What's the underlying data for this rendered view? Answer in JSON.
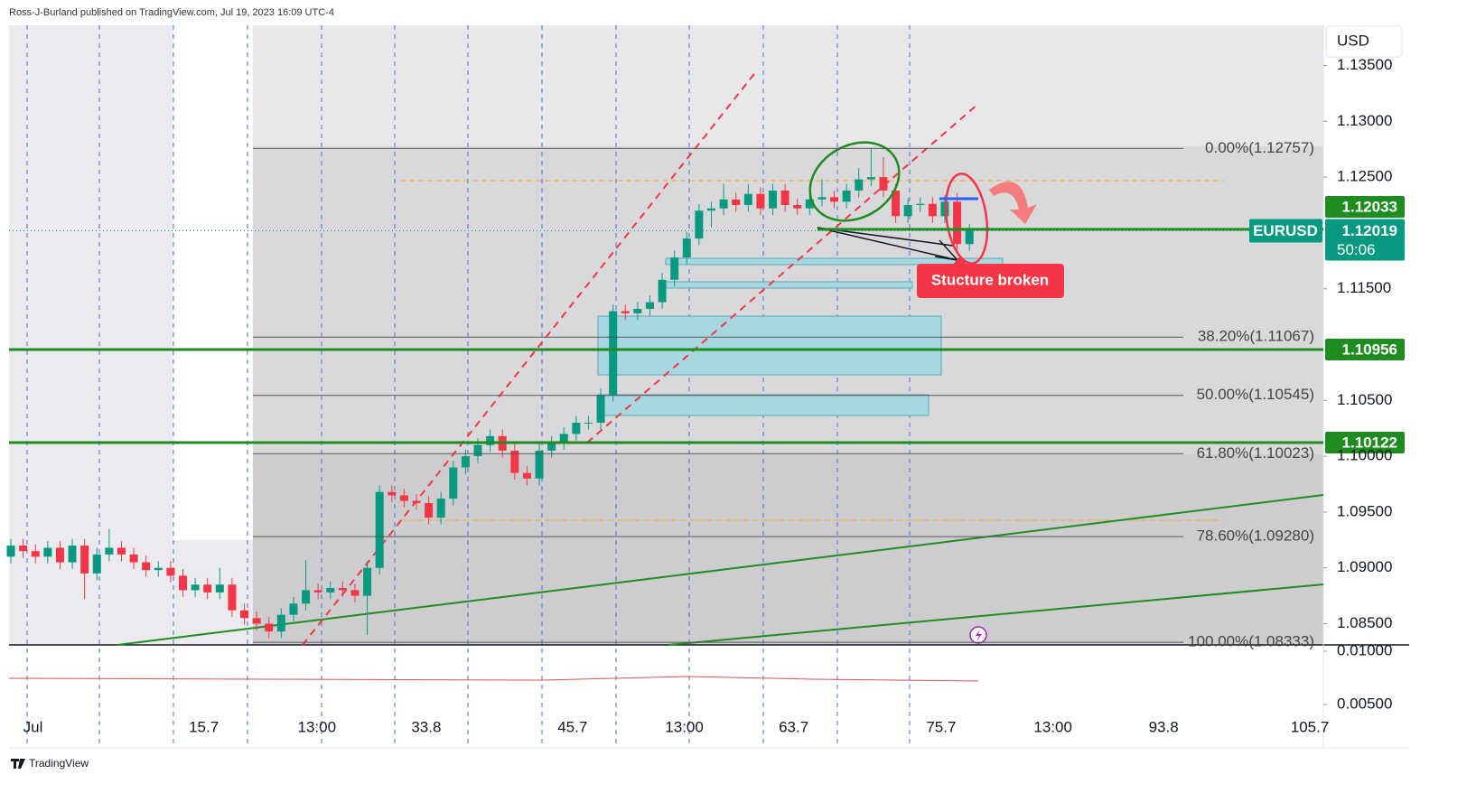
{
  "header": "Ross-J-Burland published on TradingView.com, Jul 19, 2023 16:09 UTC-4",
  "footer": "TradingView",
  "chart_data": {
    "type": "candlestick",
    "currency": "USD",
    "symbol": "EURUSD",
    "x": [
      0,
      1,
      2,
      3,
      4,
      5,
      6,
      7,
      8,
      9,
      10,
      11,
      12,
      13,
      14,
      15,
      16,
      17,
      18,
      19,
      20,
      21,
      22,
      23,
      24,
      25,
      26,
      27,
      28,
      29,
      30,
      31,
      32,
      33,
      34,
      35,
      36,
      37,
      38,
      39,
      40,
      41,
      42,
      43,
      44,
      45,
      46,
      47,
      48,
      49,
      50,
      51,
      52,
      53,
      54,
      55,
      56,
      57,
      58,
      59,
      60,
      61,
      62,
      63,
      64,
      65,
      66,
      67,
      68,
      69,
      70,
      71,
      72,
      73,
      74,
      75,
      76,
      77,
      78
    ],
    "open": [
      1.091,
      1.092,
      1.0915,
      1.091,
      1.0918,
      1.0905,
      1.092,
      1.0895,
      1.0912,
      1.0918,
      1.0912,
      1.0905,
      1.0898,
      1.09,
      1.0893,
      1.088,
      1.0885,
      1.0878,
      1.0885,
      1.0862,
      1.0855,
      1.085,
      1.0843,
      1.0858,
      1.0868,
      1.088,
      1.0878,
      1.0882,
      1.088,
      1.0875,
      1.09,
      1.0968,
      1.0965,
      1.096,
      1.0958,
      1.0945,
      1.0962,
      1.099,
      1.1,
      1.101,
      1.1018,
      1.1005,
      1.0985,
      1.098,
      1.1005,
      1.1012,
      1.102,
      1.103,
      1.103,
      1.1055,
      1.113,
      1.1128,
      1.1132,
      1.1138,
      1.1158,
      1.1178,
      1.1195,
      1.122,
      1.1222,
      1.123,
      1.1225,
      1.1235,
      1.1222,
      1.1238,
      1.1225,
      1.1222,
      1.123,
      1.1232,
      1.1228,
      1.1238,
      1.1248,
      1.125,
      1.1238,
      1.1215,
      1.1225,
      1.1226,
      1.1215,
      1.1228,
      1.119
    ],
    "high": [
      1.0926,
      1.0926,
      1.0921,
      1.0924,
      1.0924,
      1.0926,
      1.0926,
      1.0918,
      1.0935,
      1.0924,
      1.0918,
      1.0911,
      1.0906,
      1.0906,
      1.0899,
      1.0891,
      1.0891,
      1.09,
      1.0891,
      1.0868,
      1.0861,
      1.0856,
      1.0864,
      1.0874,
      1.0907,
      1.0886,
      1.0888,
      1.0888,
      1.0886,
      1.0906,
      1.0974,
      1.0974,
      1.0971,
      1.0966,
      1.0964,
      1.0968,
      1.0996,
      1.1006,
      1.1016,
      1.1024,
      1.1024,
      1.1011,
      1.0991,
      1.1011,
      1.1018,
      1.1026,
      1.1036,
      1.1036,
      1.1061,
      1.1136,
      1.1136,
      1.1138,
      1.1144,
      1.1164,
      1.1184,
      1.1201,
      1.1226,
      1.1228,
      1.1244,
      1.1236,
      1.1244,
      1.1241,
      1.1244,
      1.1244,
      1.1231,
      1.1236,
      1.1248,
      1.1238,
      1.1244,
      1.1258,
      1.1276,
      1.1268,
      1.1244,
      1.1231,
      1.1232,
      1.1232,
      1.1234,
      1.1236,
      1.1208
    ],
    "low": [
      1.0904,
      1.0909,
      1.0904,
      1.0904,
      1.0899,
      1.0899,
      1.0872,
      1.0889,
      1.0906,
      1.0906,
      1.0899,
      1.0892,
      1.0892,
      1.0887,
      1.0874,
      1.0874,
      1.0872,
      1.0872,
      1.0856,
      1.0849,
      1.0844,
      1.0837,
      1.0837,
      1.0852,
      1.0862,
      1.0872,
      1.0872,
      1.0874,
      1.0869,
      1.084,
      1.0894,
      1.0959,
      1.0954,
      1.0952,
      1.0939,
      1.0939,
      1.0956,
      1.0984,
      1.0994,
      1.1004,
      1.0999,
      1.0979,
      1.0974,
      1.0974,
      1.0999,
      1.1006,
      1.1014,
      1.1024,
      1.1024,
      1.1049,
      1.1122,
      1.1122,
      1.1126,
      1.1132,
      1.1152,
      1.1172,
      1.1189,
      1.1205,
      1.1216,
      1.1219,
      1.1219,
      1.1216,
      1.1216,
      1.1219,
      1.1216,
      1.1216,
      1.1224,
      1.1222,
      1.1222,
      1.1232,
      1.1242,
      1.1232,
      1.1209,
      1.1209,
      1.1219,
      1.1209,
      1.1209,
      1.1184,
      1.1184
    ],
    "close": [
      1.092,
      1.0915,
      1.091,
      1.0918,
      1.0905,
      1.092,
      1.0895,
      1.0912,
      1.0918,
      1.0912,
      1.0905,
      1.0898,
      1.09,
      1.0893,
      1.088,
      1.0885,
      1.0878,
      1.0885,
      1.0862,
      1.0855,
      1.085,
      1.0843,
      1.0858,
      1.0868,
      1.088,
      1.0878,
      1.0882,
      1.088,
      1.0875,
      1.09,
      1.0968,
      1.0965,
      1.096,
      1.0958,
      1.0945,
      1.0962,
      1.099,
      1.1,
      1.101,
      1.1018,
      1.1005,
      1.0985,
      1.098,
      1.1005,
      1.1012,
      1.102,
      1.103,
      1.103,
      1.1055,
      1.113,
      1.1128,
      1.1132,
      1.1138,
      1.1158,
      1.1178,
      1.1195,
      1.122,
      1.1222,
      1.123,
      1.1225,
      1.1235,
      1.1222,
      1.1238,
      1.1225,
      1.1222,
      1.123,
      1.1232,
      1.1228,
      1.1238,
      1.1248,
      1.125,
      1.1238,
      1.1215,
      1.1225,
      1.1226,
      1.1215,
      1.1228,
      1.119,
      1.1202
    ],
    "up_color": "#089981",
    "down_color": "#f23645",
    "xlim": [
      -0.15,
      106.8
    ],
    "xticks": [
      {
        "value": 1.8,
        "label": "Jul"
      },
      15.7,
      {
        "value": 24.9,
        "label": "13:00"
      },
      33.8,
      45.7,
      {
        "value": 54.8,
        "label": "13:00"
      },
      63.7,
      75.7,
      {
        "value": 84.8,
        "label": "13:00"
      },
      93.8,
      105.7
    ],
    "ylim": [
      1.0831,
      1.1386
    ],
    "yticks": [
      {
        "value": 1.135,
        "label": "1.13500"
      },
      {
        "value": 1.13,
        "label": "1.13000"
      },
      {
        "value": 1.125,
        "label": "1.12500"
      },
      {
        "value": 1.115,
        "label": "1.11500"
      },
      {
        "value": 1.105,
        "label": "1.10500"
      },
      {
        "value": 1.1,
        "label": "1.10000"
      },
      {
        "value": 1.095,
        "label": "1.09500"
      },
      {
        "value": 1.09,
        "label": "1.09000"
      },
      {
        "value": 1.085,
        "label": "1.08500"
      }
    ],
    "fib_levels": [
      {
        "value": 1.12757,
        "label": "0.00%(1.12757)"
      },
      {
        "value": 1.11067,
        "label": "38.20%(1.11067)"
      },
      {
        "value": 1.10545,
        "label": "50.00%(1.10545)"
      },
      {
        "value": 1.10023,
        "label": "61.80%(1.10023)"
      },
      {
        "value": 1.0928,
        "label": "78.60%(1.09280)"
      },
      {
        "value": 1.08333,
        "label": "100.00%(1.08333)"
      }
    ],
    "levels": [
      1.12033,
      1.10956,
      1.10122
    ],
    "level_color": "#1e8c1e",
    "last_price": 1.12019,
    "countdown": "50:06",
    "annotation": "Stucture broken",
    "indicator": {
      "ylim": [
        0.0009,
        0.0106
      ],
      "yticks": [
        {
          "value": 0.01,
          "label": "0.01000"
        },
        {
          "value": 0.005,
          "label": "0.00500"
        }
      ]
    }
  }
}
